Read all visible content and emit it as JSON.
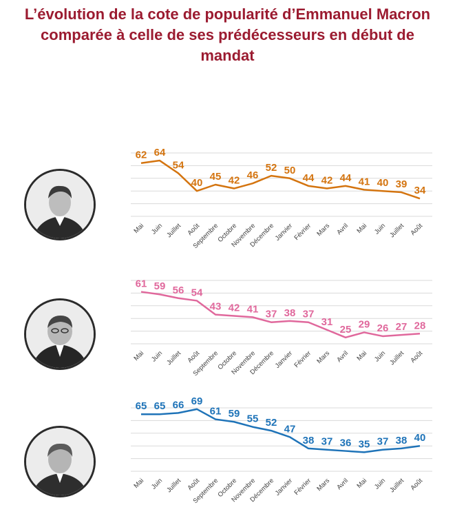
{
  "title_lines": [
    "L’évolution de la cote de popularité d’Emmanuel Macron",
    "comparée à celle de ses prédécesseurs en début de",
    "mandat"
  ],
  "chart_data": [
    {
      "type": "line",
      "categories": [
        "Mai",
        "Juin",
        "Juillet",
        "Août",
        "Septembre",
        "Octobre",
        "Novembre",
        "Décembre",
        "Janvier",
        "Février",
        "Mars",
        "Avril",
        "Mai",
        "Juin",
        "Juillet",
        "Août"
      ],
      "values": [
        62,
        64,
        54,
        40,
        45,
        42,
        46,
        52,
        50,
        44,
        42,
        44,
        41,
        40,
        39,
        34
      ],
      "color": "#d4740f",
      "portrait": "macron-portrait"
    },
    {
      "type": "line",
      "categories": [
        "Mai",
        "Juin",
        "Juillet",
        "Août",
        "Septembre",
        "Octobre",
        "Novembre",
        "Décembre",
        "Janvier",
        "Février",
        "Mars",
        "Avril",
        "Mai",
        "Juin",
        "Juillet",
        "Août"
      ],
      "values": [
        61,
        59,
        56,
        54,
        43,
        42,
        41,
        37,
        38,
        37,
        31,
        25,
        29,
        26,
        27,
        28
      ],
      "color": "#e0689c",
      "portrait": "hollande-portrait"
    },
    {
      "type": "line",
      "categories": [
        "Mai",
        "Juin",
        "Juillet",
        "Août",
        "Septembre",
        "Octobre",
        "Novembre",
        "Décembre",
        "Janvier",
        "Février",
        "Mars",
        "Avril",
        "Mai",
        "Juin",
        "Juillet",
        "Août"
      ],
      "values": [
        65,
        65,
        66,
        69,
        61,
        59,
        55,
        52,
        47,
        38,
        37,
        36,
        35,
        37,
        38,
        40
      ],
      "color": "#1e73b8",
      "portrait": "sarkozy-portrait"
    }
  ]
}
